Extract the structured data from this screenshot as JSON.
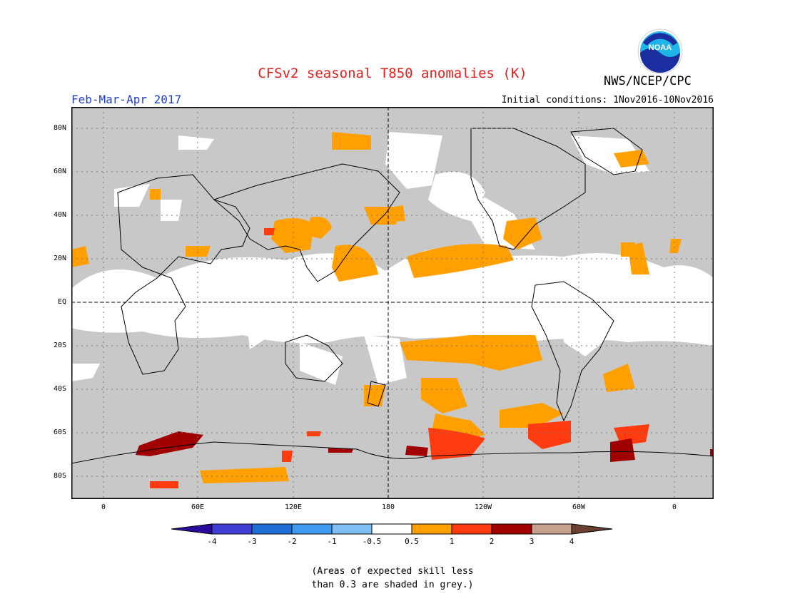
{
  "header": {
    "title": "CFSv2 seasonal T850 anomalies (K)",
    "agency": "NWS/NCEP/CPC",
    "period": "Feb-Mar-Apr 2017",
    "initial_conditions": "Initial conditions: 1Nov2016-10Nov2016",
    "logo_text": "NOAA"
  },
  "map": {
    "lat_labels": [
      "80N",
      "60N",
      "40N",
      "20N",
      "EQ",
      "20S",
      "40S",
      "60S",
      "80S"
    ],
    "lon_labels": [
      "0",
      "60E",
      "120E",
      "180",
      "120W",
      "60W",
      "0"
    ],
    "background_colors": {
      "no_skill": "#c8c8c8",
      "near_normal": "#ffffff"
    }
  },
  "legend": {
    "labels": [
      "-4",
      "-3",
      "-2",
      "-1",
      "-0.5",
      "0.5",
      "1",
      "2",
      "3",
      "4"
    ],
    "colors": [
      "#2a0a9c",
      "#3f3fd6",
      "#1f6fd6",
      "#3f9af0",
      "#80bff5",
      "#ffffff",
      "#ffa000",
      "#ff3b10",
      "#a00000",
      "#c8a090",
      "#6b4030"
    ]
  },
  "footnote": {
    "line1": "(Areas of expected skill less",
    "line2": "than 0.3 are shaded in grey.)"
  }
}
